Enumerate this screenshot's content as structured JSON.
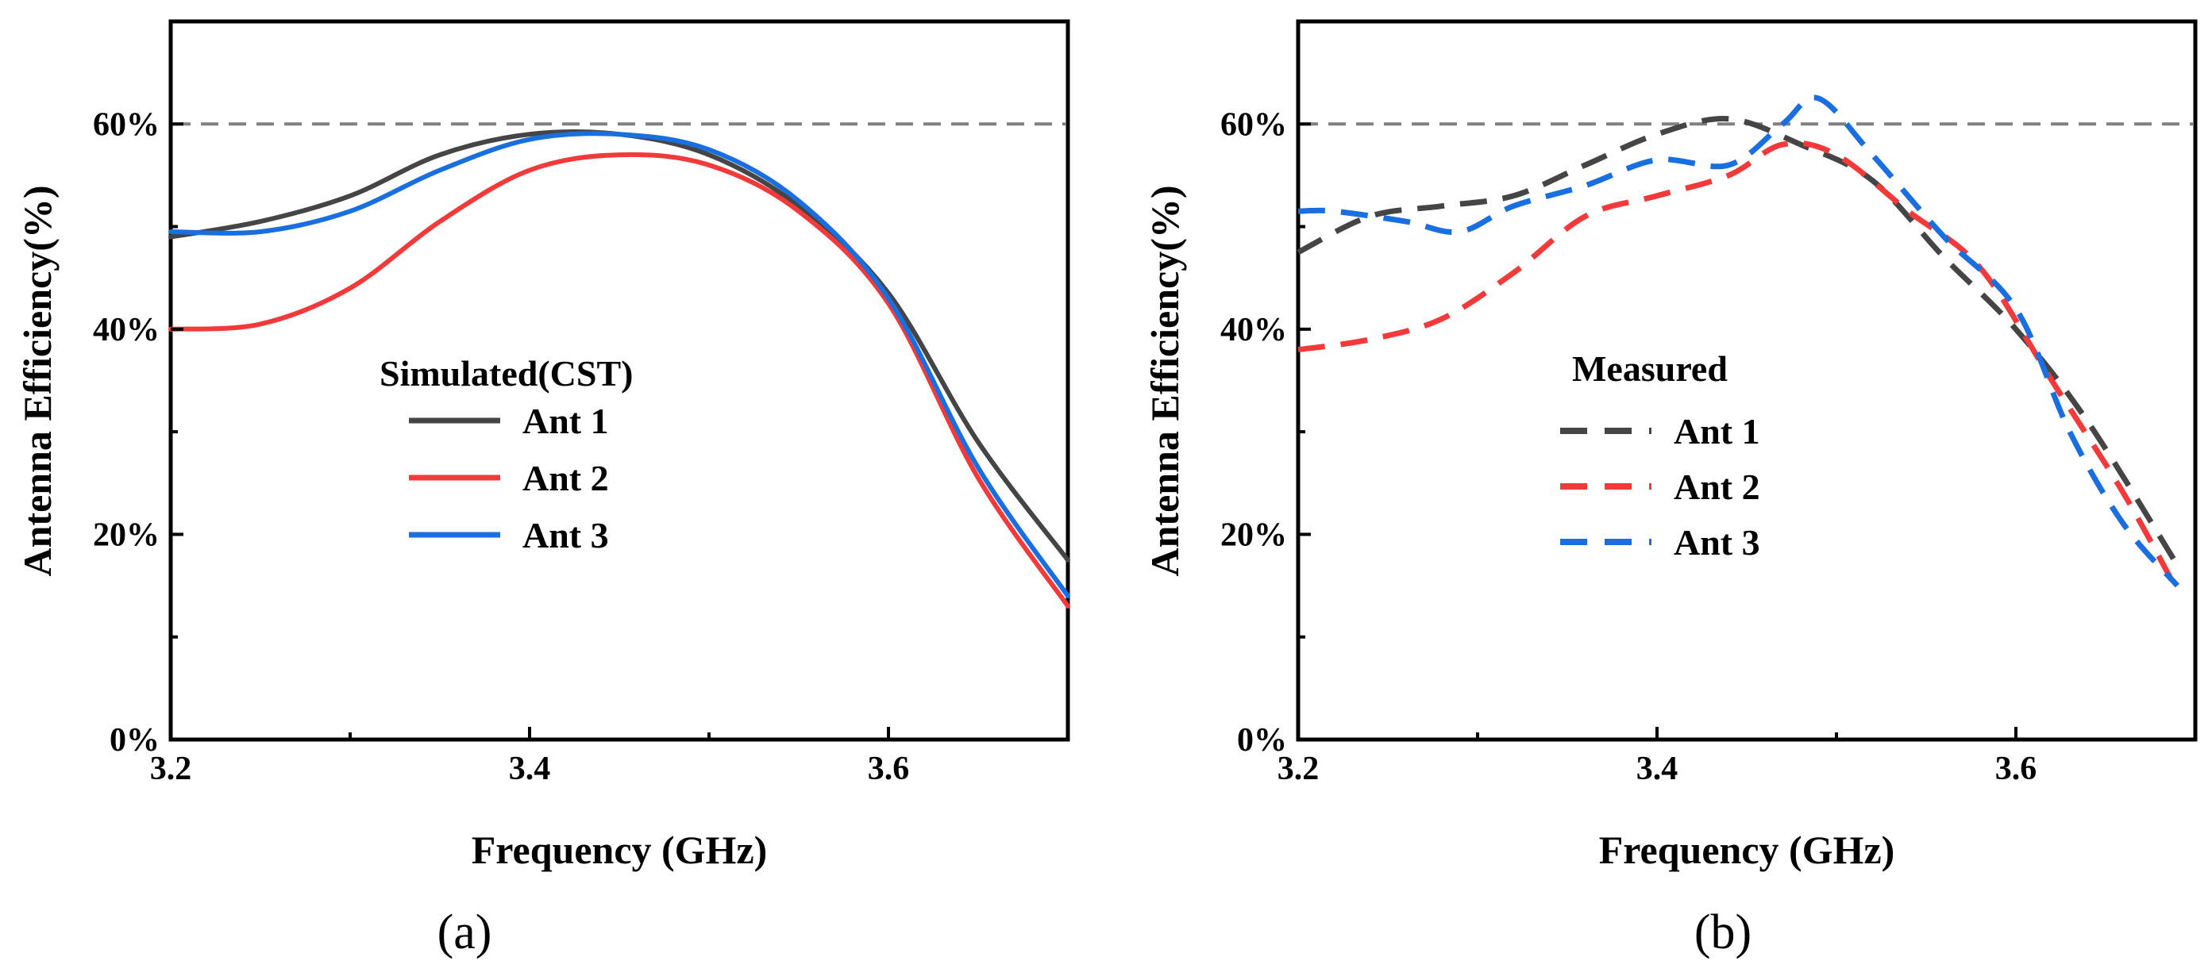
{
  "chart_data": [
    {
      "type": "line",
      "panel_label": "(a)",
      "xlabel": "Frequency (GHz)",
      "ylabel": "Antenna Efficiency(%)",
      "xlim": [
        3.2,
        3.7
      ],
      "ylim": [
        0,
        70
      ],
      "x_ticks": [
        3.2,
        3.4,
        3.6
      ],
      "x_tick_labels": [
        "3.2",
        "3.4",
        "3.6"
      ],
      "y_ticks": [
        0,
        20,
        40,
        60
      ],
      "y_tick_labels": [
        "0%",
        "20%",
        "40%",
        "60%"
      ],
      "reference_line": {
        "y": 60,
        "style": "dashed",
        "color": "#808080"
      },
      "legend_title": "Simulated(CST)",
      "legend_position": "center-left",
      "line_style": "solid",
      "series": [
        {
          "name": "Ant 1",
          "color": "#454545",
          "x": [
            3.2,
            3.25,
            3.3,
            3.35,
            3.4,
            3.45,
            3.5,
            3.55,
            3.6,
            3.65,
            3.7
          ],
          "y": [
            49,
            50.5,
            53,
            57,
            59,
            59,
            57,
            52,
            43.5,
            29,
            17.5
          ]
        },
        {
          "name": "Ant 2",
          "color": "#f23a3a",
          "x": [
            3.2,
            3.25,
            3.3,
            3.35,
            3.4,
            3.45,
            3.5,
            3.55,
            3.6,
            3.65,
            3.7
          ],
          "y": [
            40,
            40.5,
            44,
            50.5,
            55.5,
            57,
            56,
            51.5,
            42.5,
            25.5,
            13
          ]
        },
        {
          "name": "Ant 3",
          "color": "#1a6fe0",
          "x": [
            3.2,
            3.25,
            3.3,
            3.35,
            3.4,
            3.45,
            3.5,
            3.55,
            3.6,
            3.65,
            3.7
          ],
          "y": [
            49.5,
            49.5,
            51.5,
            55.5,
            58.5,
            59,
            57.5,
            52.5,
            43,
            26.5,
            14
          ]
        }
      ]
    },
    {
      "type": "line",
      "panel_label": "(b)",
      "xlabel": "Frequency (GHz)",
      "ylabel": "Antenna Efficiency(%)",
      "xlim": [
        3.2,
        3.7
      ],
      "ylim": [
        0,
        70
      ],
      "x_ticks": [
        3.2,
        3.4,
        3.6
      ],
      "x_tick_labels": [
        "3.2",
        "3.4",
        "3.6"
      ],
      "y_ticks": [
        0,
        20,
        40,
        60
      ],
      "y_tick_labels": [
        "0%",
        "20%",
        "40%",
        "60%"
      ],
      "reference_line": {
        "y": 60,
        "style": "dashed",
        "color": "#808080"
      },
      "legend_title": "Measured",
      "legend_position": "center",
      "line_style": "dashed",
      "series": [
        {
          "name": "Ant 1",
          "color": "#454545",
          "x": [
            3.2,
            3.24,
            3.28,
            3.32,
            3.36,
            3.4,
            3.44,
            3.48,
            3.52,
            3.56,
            3.6,
            3.64,
            3.69
          ],
          "y": [
            47.5,
            51,
            52,
            53,
            56,
            59,
            60.5,
            58,
            54.5,
            47,
            40,
            31,
            17
          ]
        },
        {
          "name": "Ant 2",
          "color": "#f23a3a",
          "x": [
            3.2,
            3.24,
            3.28,
            3.32,
            3.36,
            3.4,
            3.44,
            3.47,
            3.5,
            3.54,
            3.58,
            3.62,
            3.66,
            3.69
          ],
          "y": [
            38,
            39,
            41,
            45.5,
            51,
            53,
            55,
            58,
            57,
            51.5,
            46,
            35,
            24,
            14.5
          ]
        },
        {
          "name": "Ant 3",
          "color": "#1a6fe0",
          "x": [
            3.2,
            3.22,
            3.26,
            3.29,
            3.32,
            3.36,
            3.4,
            3.44,
            3.47,
            3.49,
            3.52,
            3.56,
            3.6,
            3.63,
            3.66,
            3.69
          ],
          "y": [
            51.5,
            51.5,
            50.5,
            49.5,
            52,
            54,
            56.5,
            56,
            60,
            62.5,
            57,
            49,
            42,
            30,
            21,
            15
          ]
        }
      ]
    }
  ]
}
